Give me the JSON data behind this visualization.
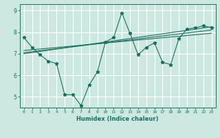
{
  "xlabel": "Humidex (Indice chaleur)",
  "ylabel": "",
  "bg_color": "#cce8e0",
  "line_color": "#1a6e62",
  "xlim": [
    -0.5,
    23.5
  ],
  "ylim": [
    4.5,
    9.3
  ],
  "x_ticks": [
    0,
    1,
    2,
    3,
    4,
    5,
    6,
    7,
    8,
    9,
    10,
    11,
    12,
    13,
    14,
    15,
    16,
    17,
    18,
    19,
    20,
    21,
    22,
    23
  ],
  "y_ticks": [
    5,
    6,
    7,
    8,
    9
  ],
  "main_data": {
    "x": [
      0,
      1,
      2,
      3,
      4,
      5,
      6,
      7,
      8,
      9,
      10,
      11,
      12,
      13,
      14,
      15,
      16,
      17,
      18,
      19,
      20,
      21,
      22,
      23
    ],
    "y": [
      7.75,
      7.3,
      6.95,
      6.65,
      6.55,
      5.1,
      5.1,
      4.6,
      5.55,
      6.15,
      7.55,
      7.75,
      8.9,
      7.95,
      6.95,
      7.3,
      7.5,
      6.6,
      6.5,
      7.7,
      8.15,
      8.2,
      8.3,
      8.2
    ]
  },
  "trend1": {
    "x": [
      0,
      23
    ],
    "y": [
      7.15,
      7.95
    ]
  },
  "trend2": {
    "x": [
      0,
      23
    ],
    "y": [
      7.05,
      8.1
    ]
  },
  "trend3": {
    "x": [
      0,
      23
    ],
    "y": [
      7.0,
      8.25
    ]
  }
}
